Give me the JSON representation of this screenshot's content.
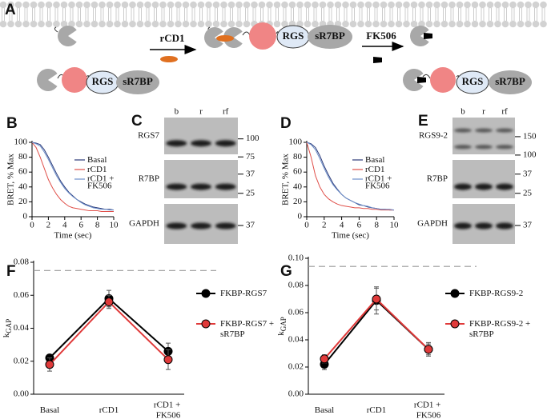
{
  "diagram": {
    "panel": "A",
    "step1_label": "rCD1",
    "step2_label": "FK506",
    "complexes": [
      {
        "rgs": "RGS",
        "partner": "sR7BP"
      },
      {
        "rgs": "RGS",
        "partner": "sR7BP"
      },
      {
        "rgs": "RGS",
        "partner": "sR7BP"
      }
    ]
  },
  "blots": [
    {
      "panel": "C",
      "lanes": [
        "b",
        "r",
        "rf"
      ],
      "rows": [
        {
          "label": "RGS7",
          "markers": [
            100,
            75
          ]
        },
        {
          "label": "R7BP",
          "markers": [
            37,
            25
          ]
        },
        {
          "label": "GAPDH",
          "markers": [
            37
          ]
        }
      ]
    },
    {
      "panel": "E",
      "lanes": [
        "b",
        "r",
        "rf"
      ],
      "rows": [
        {
          "label": "RGS9-2",
          "markers": [
            150,
            100
          ]
        },
        {
          "label": "R7BP",
          "markers": [
            37,
            25
          ]
        },
        {
          "label": "GAPDH",
          "markers": [
            37
          ]
        }
      ]
    }
  ],
  "chart_data": [
    {
      "panel": "B",
      "type": "line",
      "xlabel": "Time (sec)",
      "ylabel": "BRET, % Max",
      "x": [
        0,
        0.5,
        1,
        1.5,
        2,
        2.5,
        3,
        3.5,
        4,
        4.5,
        5,
        5.5,
        6,
        6.5,
        7,
        7.5,
        8,
        8.5,
        9,
        9.5,
        10
      ],
      "xlim": [
        0,
        10
      ],
      "ylim": [
        0,
        100
      ],
      "xticks": [
        0,
        2,
        4,
        6,
        8,
        10
      ],
      "yticks": [
        0,
        20,
        40,
        60,
        80,
        100
      ],
      "series": [
        {
          "name": "Basal",
          "color": "#2b3a78",
          "values": [
            100,
            99,
            97,
            90,
            80,
            69,
            58,
            48,
            40,
            33,
            28,
            23,
            20,
            17,
            15,
            13,
            12,
            11,
            10,
            10,
            9
          ]
        },
        {
          "name": "rCD1",
          "color": "#e0504a",
          "values": [
            100,
            93,
            80,
            65,
            50,
            39,
            30,
            23,
            18,
            14,
            12,
            11,
            10,
            9,
            8,
            8,
            8,
            7,
            7,
            7,
            7
          ]
        },
        {
          "name": "rCD1 + FK506",
          "color": "#6d8fca",
          "values": [
            100,
            98,
            95,
            87,
            77,
            66,
            55,
            46,
            38,
            32,
            27,
            23,
            19,
            16,
            14,
            12,
            11,
            10,
            10,
            9,
            9
          ]
        }
      ]
    },
    {
      "panel": "D",
      "type": "line",
      "xlabel": "Time (sec)",
      "ylabel": "BRET, % Max",
      "x": [
        0,
        0.5,
        1,
        1.5,
        2,
        2.5,
        3,
        3.5,
        4,
        4.5,
        5,
        5.5,
        6,
        6.5,
        7,
        7.5,
        8,
        8.5,
        9,
        9.5,
        10
      ],
      "xlim": [
        0,
        10
      ],
      "ylim": [
        0,
        100
      ],
      "xticks": [
        0,
        2,
        4,
        6,
        8,
        10
      ],
      "yticks": [
        0,
        20,
        40,
        60,
        80,
        100
      ],
      "series": [
        {
          "name": "Basal",
          "color": "#2b3a78",
          "values": [
            100,
            98,
            93,
            82,
            68,
            56,
            45,
            37,
            30,
            25,
            22,
            19,
            16,
            15,
            13,
            12,
            11,
            10,
            10,
            9,
            9
          ]
        },
        {
          "name": "rCD1",
          "color": "#e0504a",
          "values": [
            100,
            80,
            55,
            40,
            30,
            24,
            20,
            17,
            15,
            14,
            13,
            12,
            12,
            11,
            11,
            10,
            10,
            9,
            9,
            9,
            9
          ]
        },
        {
          "name": "rCD1 + FK506",
          "color": "#6d8fca",
          "values": [
            100,
            97,
            90,
            78,
            65,
            53,
            43,
            36,
            30,
            25,
            22,
            19,
            17,
            15,
            14,
            12,
            11,
            10,
            10,
            10,
            9
          ]
        }
      ]
    },
    {
      "panel": "F",
      "type": "line",
      "ylabel": {
        "text": "k",
        "subscript": "GAP"
      },
      "categories": [
        "Basal",
        "rCD1",
        "rCD1 + FK506"
      ],
      "ylim": [
        0,
        0.08
      ],
      "yticks": [
        {
          "value": 0,
          "label": "0.00"
        },
        {
          "value": 0.02,
          "label": "0.02"
        },
        {
          "value": 0.04,
          "label": "0.04"
        },
        {
          "value": 0.06,
          "label": "0.06"
        },
        {
          "value": 0.08,
          "label": "0.08"
        }
      ],
      "reference_line": 0.075,
      "series": [
        {
          "name": "FKBP-RGS7",
          "color": "#000000",
          "values": [
            0.022,
            0.058,
            0.026
          ],
          "errors": [
            0.002,
            0.005,
            0.005
          ]
        },
        {
          "name": "FKBP-RGS7 + sR7BP",
          "color": "#e03a3a",
          "values": [
            0.018,
            0.056,
            0.021
          ],
          "errors": [
            0.004,
            0.004,
            0.006
          ]
        }
      ]
    },
    {
      "panel": "G",
      "type": "line",
      "ylabel": {
        "text": "k",
        "subscript": "GAP"
      },
      "categories": [
        "Basal",
        "rCD1",
        "rCD1 + FK506"
      ],
      "ylim": [
        0,
        0.1
      ],
      "yticks": [
        {
          "value": 0,
          "label": "0.00"
        },
        {
          "value": 0.02,
          "label": "0.02"
        },
        {
          "value": 0.04,
          "label": "0.04"
        },
        {
          "value": 0.06,
          "label": "0.06"
        },
        {
          "value": 0.08,
          "label": "0.08"
        },
        {
          "value": 0.1,
          "label": "0.10"
        }
      ],
      "reference_line": 0.094,
      "series": [
        {
          "name": "FKBP-RGS9-2",
          "color": "#000000",
          "values": [
            0.022,
            0.069,
            0.033
          ],
          "errors": [
            0.004,
            0.01,
            0.004
          ]
        },
        {
          "name": "FKBP-RGS9-2 + sR7BP",
          "color": "#e03a3a",
          "values": [
            0.026,
            0.07,
            0.033
          ],
          "errors": [
            0.003,
            0.008,
            0.005
          ]
        }
      ]
    }
  ]
}
